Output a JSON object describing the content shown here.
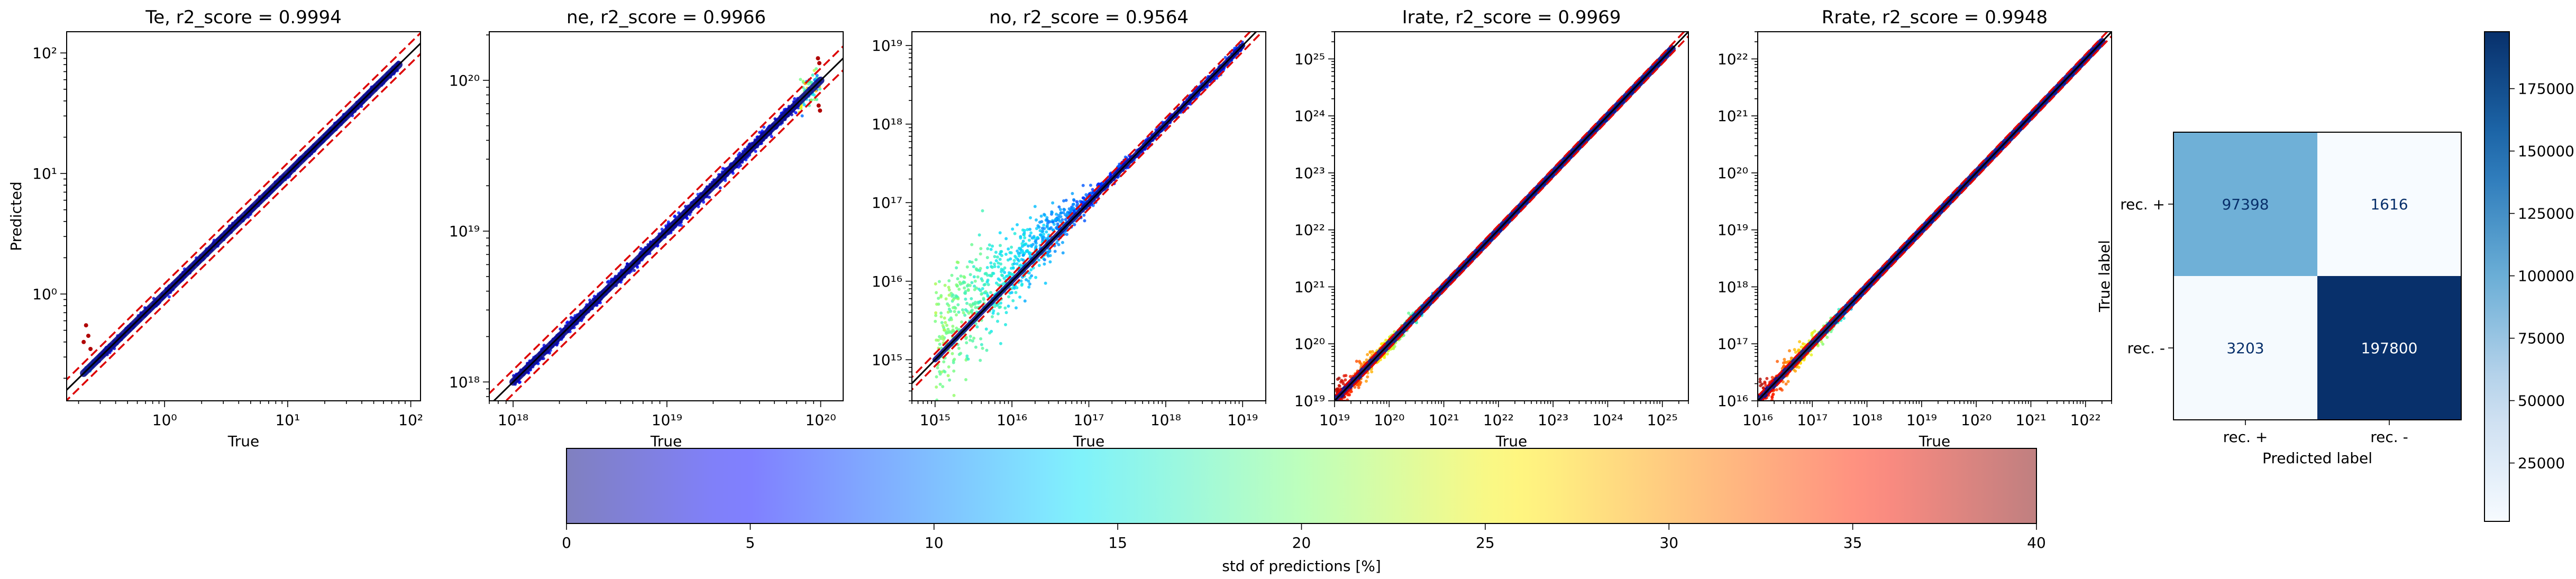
{
  "chart_data": [
    {
      "type": "scatter",
      "title": "Te, r2_score = 0.9994",
      "xlabel": "True",
      "ylabel": "Predicted",
      "scale": "log",
      "xlim": [
        0.16,
        120
      ],
      "ylim": [
        0.13,
        150
      ],
      "xticks": [
        {
          "v": 1,
          "label": "10⁰"
        },
        {
          "v": 10,
          "label": "10¹"
        },
        {
          "v": 100,
          "label": "10²"
        }
      ],
      "yticks": [
        {
          "v": 1,
          "label": "10⁰"
        },
        {
          "v": 10,
          "label": "10¹"
        },
        {
          "v": 100,
          "label": "10²"
        }
      ],
      "range": [
        0.22,
        80
      ],
      "band_factor": 1.22,
      "color_profile": "te",
      "outliers": [
        [
          0.23,
          0.55
        ],
        [
          0.24,
          0.45
        ],
        [
          0.22,
          0.4
        ],
        [
          0.25,
          0.35
        ]
      ]
    },
    {
      "type": "scatter",
      "title": "ne, r2_score = 0.9966",
      "xlabel": "True",
      "ylabel": "",
      "scale": "log",
      "xlim": [
        7e+17,
        1.4e+20
      ],
      "ylim": [
        7.5e+17,
        2.1e+20
      ],
      "xticks": [
        {
          "v": 1e+18,
          "label": "10¹⁸"
        },
        {
          "v": 1e+19,
          "label": "10¹⁹"
        },
        {
          "v": 1e+20,
          "label": "10²⁰"
        }
      ],
      "yticks": [
        {
          "v": 1e+18,
          "label": "10¹⁸"
        },
        {
          "v": 1e+19,
          "label": "10¹⁹"
        },
        {
          "v": 1e+20,
          "label": "10²⁰"
        }
      ],
      "range": [
        1e+18,
        1e+20
      ],
      "band_factor": 1.2,
      "color_profile": "ne",
      "outliers": [
        [
          9.6e+19,
          1.4e+20
        ],
        [
          9.8e+19,
          1.3e+20
        ],
        [
          9.9e+19,
          6.3e+19
        ],
        [
          9.7e+19,
          6.8e+19
        ]
      ]
    },
    {
      "type": "scatter",
      "title": "no, r2_score = 0.9564",
      "xlabel": "True",
      "ylabel": "",
      "scale": "log",
      "xlim": [
        500000000000000.0,
        2e+19
      ],
      "ylim": [
        300000000000000.0,
        1.5e+19
      ],
      "xticks": [
        {
          "v": 1000000000000000.0,
          "label": "10¹⁵"
        },
        {
          "v": 1e+16,
          "label": "10¹⁶"
        },
        {
          "v": 1e+17,
          "label": "10¹⁷"
        },
        {
          "v": 1e+18,
          "label": "10¹⁸"
        },
        {
          "v": 1e+19,
          "label": "10¹⁹"
        }
      ],
      "yticks": [
        {
          "v": 1000000000000000.0,
          "label": "10¹⁵"
        },
        {
          "v": 1e+16,
          "label": "10¹⁶"
        },
        {
          "v": 1e+17,
          "label": "10¹⁷"
        },
        {
          "v": 1e+18,
          "label": "10¹⁸"
        },
        {
          "v": 1e+19,
          "label": "10¹⁹"
        }
      ],
      "range": [
        1000000000000000.0,
        1e+19
      ],
      "band_factor": 1.2,
      "color_profile": "no",
      "outliers": []
    },
    {
      "type": "scatter",
      "title": "Irate, r2_score = 0.9969",
      "xlabel": "True",
      "ylabel": "",
      "scale": "log",
      "xlim": [
        1e+19,
        3e+25
      ],
      "ylim": [
        1e+19,
        3e+25
      ],
      "xticks": [
        {
          "v": 1e+19,
          "label": "10¹⁹"
        },
        {
          "v": 1e+20,
          "label": "10²⁰"
        },
        {
          "v": 1e+21,
          "label": "10²¹"
        },
        {
          "v": 1e+22,
          "label": "10²²"
        },
        {
          "v": 1e+23,
          "label": "10²³"
        },
        {
          "v": 1e+24,
          "label": "10²⁴"
        },
        {
          "v": 1e+25,
          "label": "10²⁵"
        }
      ],
      "yticks": [
        {
          "v": 1e+19,
          "label": "10¹⁹"
        },
        {
          "v": 1e+20,
          "label": "10²⁰"
        },
        {
          "v": 1e+21,
          "label": "10²¹"
        },
        {
          "v": 1e+22,
          "label": "10²²"
        },
        {
          "v": 1e+23,
          "label": "10²³"
        },
        {
          "v": 1e+24,
          "label": "10²⁴"
        },
        {
          "v": 1e+25,
          "label": "10²⁵"
        }
      ],
      "range": [
        1e+19,
        1.5e+25
      ],
      "band_factor": 1.2,
      "color_profile": "rate",
      "outliers": []
    },
    {
      "type": "scatter",
      "title": "Rrate, r2_score = 0.9948",
      "xlabel": "True",
      "ylabel": "",
      "scale": "log",
      "xlim": [
        1e+16,
        3e+22
      ],
      "ylim": [
        1e+16,
        3e+22
      ],
      "xticks": [
        {
          "v": 1e+16,
          "label": "10¹⁶"
        },
        {
          "v": 1e+17,
          "label": "10¹⁷"
        },
        {
          "v": 1e+18,
          "label": "10¹⁸"
        },
        {
          "v": 1e+19,
          "label": "10¹⁹"
        },
        {
          "v": 1e+20,
          "label": "10²⁰"
        },
        {
          "v": 1e+21,
          "label": "10²¹"
        },
        {
          "v": 1e+22,
          "label": "10²²"
        }
      ],
      "yticks": [
        {
          "v": 1e+16,
          "label": "10¹⁶"
        },
        {
          "v": 1e+17,
          "label": "10¹⁷"
        },
        {
          "v": 1e+18,
          "label": "10¹⁸"
        },
        {
          "v": 1e+19,
          "label": "10¹⁹"
        },
        {
          "v": 1e+20,
          "label": "10²⁰"
        },
        {
          "v": 1e+21,
          "label": "10²¹"
        },
        {
          "v": 1e+22,
          "label": "10²²"
        }
      ],
      "range": [
        1e+16,
        2e+22
      ],
      "band_factor": 1.2,
      "color_profile": "rate",
      "outliers": []
    },
    {
      "type": "heatmap",
      "xlabel": "Predicted label",
      "ylabel": "True label",
      "xticklabels": [
        "rec. +",
        "rec. -"
      ],
      "yticklabels": [
        "rec. +",
        "rec. -"
      ],
      "values": [
        [
          97398,
          1616
        ],
        [
          3203,
          197800
        ]
      ],
      "colorbar": {
        "min": 1616,
        "max": 197800,
        "ticks": [
          25000,
          50000,
          75000,
          100000,
          125000,
          150000,
          175000
        ],
        "tick_labels": [
          "25000",
          "50000",
          "75000",
          "100000",
          "125000",
          "150000",
          "175000"
        ]
      }
    }
  ],
  "colorbar": {
    "label": "std of predictions [%]",
    "min": 0,
    "max": 40,
    "ticks": [
      "0",
      "5",
      "10",
      "15",
      "20",
      "25",
      "30",
      "35",
      "40"
    ]
  },
  "colors": {
    "reference_line": "#000000",
    "band_line": "#dd0000",
    "blues_light": "#f7fbff",
    "blues_dark": "#08306b"
  }
}
